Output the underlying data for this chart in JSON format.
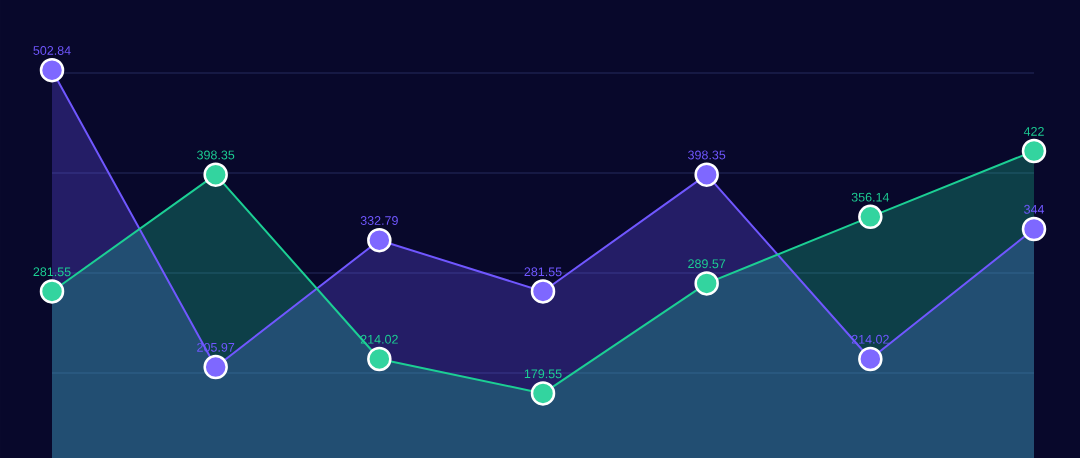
{
  "chart_data": {
    "type": "area",
    "categories": [
      null,
      null,
      null,
      null,
      null,
      null,
      null
    ],
    "series": [
      {
        "color": "#7057ff",
        "values": [
          502.84,
          205.97,
          332.79,
          281.55,
          398.35,
          214.02,
          344
        ]
      },
      {
        "color": "#1ccf94",
        "values": [
          281.55,
          398.35,
          214.02,
          179.55,
          289.57,
          356.14,
          422
        ]
      }
    ],
    "ylim": [
      115,
      573
    ],
    "yticks": [
      {
        "value": 200,
        "label": null
      },
      {
        "value": 300,
        "label": null
      },
      {
        "value": 400,
        "label": null
      },
      {
        "value": 500,
        "label": null
      }
    ],
    "grid": "y",
    "marker": "circle",
    "data_labels": true
  }
}
